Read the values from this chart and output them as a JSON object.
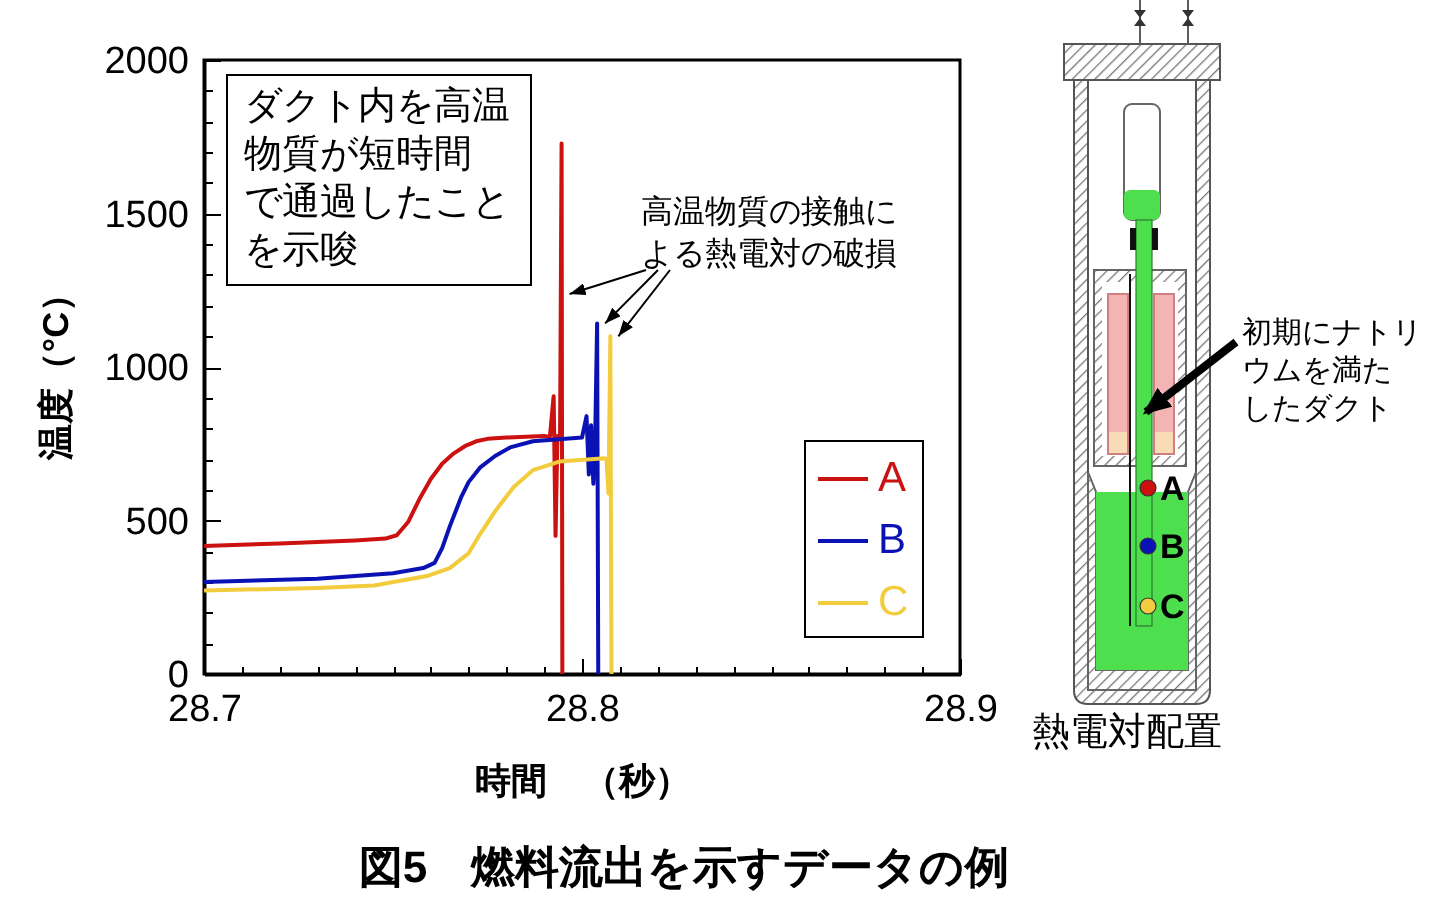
{
  "chart_data": {
    "type": "line",
    "title": "図5　燃料流出を示すデータの例",
    "xlabel": "時間　（秒）",
    "ylabel": "温度（°C）",
    "xlim": [
      28.7,
      28.9
    ],
    "ylim": [
      0,
      2000
    ],
    "xticks": [
      28.7,
      {
        "value": 28.71,
        "label": null
      },
      {
        "value": 28.72,
        "label": null
      },
      {
        "value": 28.73,
        "label": null
      },
      {
        "value": 28.74,
        "label": null
      },
      {
        "value": 28.75,
        "label": null
      },
      {
        "value": 28.76,
        "label": null
      },
      {
        "value": 28.77,
        "label": null
      },
      {
        "value": 28.78,
        "label": null
      },
      {
        "value": 28.79,
        "label": null
      },
      28.8,
      {
        "value": 28.81,
        "label": null
      },
      {
        "value": 28.82,
        "label": null
      },
      {
        "value": 28.83,
        "label": null
      },
      {
        "value": 28.84,
        "label": null
      },
      {
        "value": 28.85,
        "label": null
      },
      {
        "value": 28.86,
        "label": null
      },
      {
        "value": 28.87,
        "label": null
      },
      {
        "value": 28.88,
        "label": null
      },
      {
        "value": 28.89,
        "label": null
      },
      28.9
    ],
    "yticks": [
      0,
      {
        "value": 100,
        "label": null
      },
      {
        "value": 200,
        "label": null
      },
      {
        "value": 300,
        "label": null
      },
      {
        "value": 400,
        "label": null
      },
      500,
      {
        "value": 600,
        "label": null
      },
      {
        "value": 700,
        "label": null
      },
      {
        "value": 800,
        "label": null
      },
      {
        "value": 900,
        "label": null
      },
      1000,
      {
        "value": 1100,
        "label": null
      },
      {
        "value": 1200,
        "label": null
      },
      {
        "value": 1300,
        "label": null
      },
      {
        "value": 1400,
        "label": null
      },
      1500,
      {
        "value": 1600,
        "label": null
      },
      {
        "value": 1700,
        "label": null
      },
      {
        "value": 1800,
        "label": null
      },
      {
        "value": 1900,
        "label": null
      },
      2000
    ],
    "legend": "right",
    "series": [
      {
        "name": "A",
        "color": "#cc1111",
        "x": [
          28.7,
          28.72,
          28.74,
          28.748,
          28.751,
          28.754,
          28.757,
          28.76,
          28.763,
          28.766,
          28.769,
          28.772,
          28.775,
          28.78,
          28.79,
          28.7915,
          28.7925,
          28.793,
          28.7935,
          28.7942,
          28.7946,
          28.7948
        ],
        "values": [
          417,
          425,
          435,
          441,
          452,
          495,
          570,
          635,
          685,
          718,
          742,
          758,
          766,
          770,
          775,
          772,
          905,
          450,
          775,
          775,
          1728,
          0
        ]
      },
      {
        "name": "B",
        "color": "#0a12b4",
        "x": [
          28.7,
          28.73,
          28.75,
          28.758,
          28.761,
          28.763,
          28.765,
          28.768,
          28.77,
          28.773,
          28.777,
          28.781,
          28.787,
          28.8,
          28.8012,
          28.8018,
          28.8024,
          28.803,
          28.8035,
          28.804,
          28.8043
        ],
        "values": [
          300,
          310,
          328,
          345,
          362,
          410,
          480,
          575,
          625,
          672,
          710,
          738,
          758,
          770,
          840,
          650,
          810,
          620,
          780,
          1142,
          0
        ]
      },
      {
        "name": "C",
        "color": "#f2cc3c",
        "x": [
          28.7,
          28.73,
          28.745,
          28.759,
          28.765,
          28.77,
          28.773,
          28.777,
          28.782,
          28.787,
          28.794,
          28.806,
          28.8065,
          28.807,
          28.8075,
          28.8078
        ],
        "values": [
          272,
          280,
          288,
          319,
          345,
          393,
          455,
          530,
          610,
          664,
          692,
          703,
          700,
          588,
          1100,
          0
        ]
      }
    ],
    "annotations": [
      "ダクト内を高温物質が短時間で通過したことを示唆",
      {
        "text": "高温物質の接触による熱電対の破損",
        "x": 28.804,
        "y": 1142
      },
      "初期にナトリウムを満たしたダクト",
      "熱電対配置"
    ]
  }
}
